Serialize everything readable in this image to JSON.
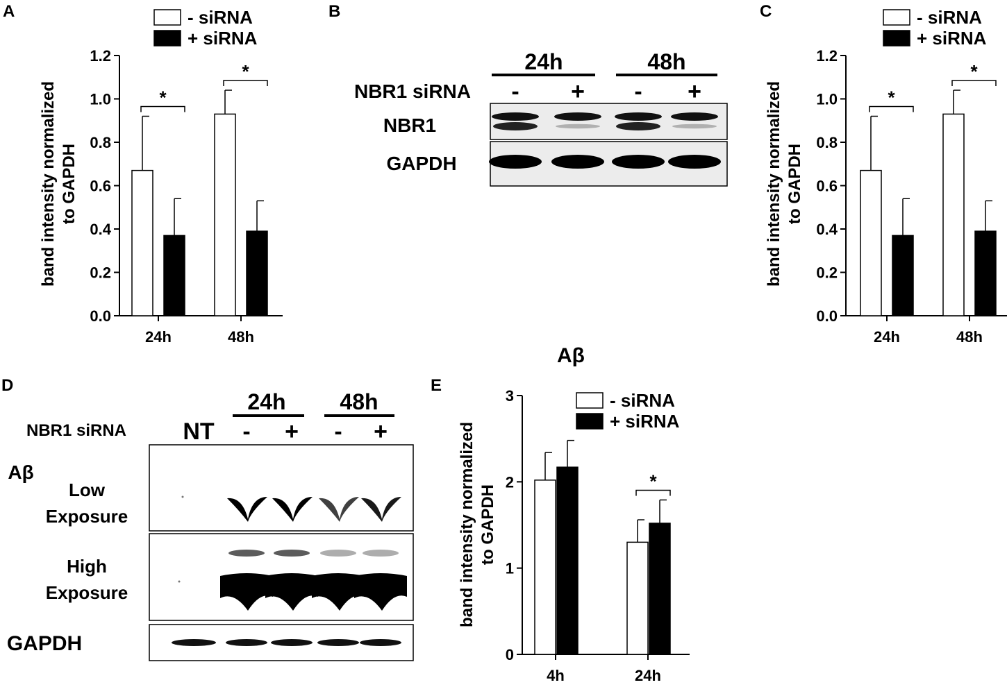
{
  "panels": {
    "A": {
      "letter": "A"
    },
    "B": {
      "letter": "B"
    },
    "C": {
      "letter": "C"
    },
    "D": {
      "letter": "D"
    },
    "E": {
      "letter": "E"
    }
  },
  "chart_data": [
    {
      "panel": "A",
      "type": "bar",
      "title": "",
      "ylabel": "band intensity normalized to GAPDH",
      "ylabel_lines": [
        "band intensity normalized",
        "to GAPDH"
      ],
      "xlabel": "",
      "categories": [
        "24h",
        "48h"
      ],
      "series": [
        {
          "name": "- siRNA",
          "values": [
            0.67,
            0.93
          ],
          "errors": [
            0.25,
            0.11
          ],
          "fill": "#ffffff"
        },
        {
          "name": "+ siRNA",
          "values": [
            0.37,
            0.39
          ],
          "errors": [
            0.17,
            0.14
          ],
          "fill": "#000000"
        }
      ],
      "ylim": [
        0,
        1.2
      ],
      "yticks": [
        "0.0",
        "0.2",
        "0.4",
        "0.6",
        "0.8",
        "1.0",
        "1.2"
      ],
      "significance": [
        "*",
        "*"
      ],
      "legend_position": "top"
    },
    {
      "panel": "C",
      "type": "bar",
      "title": "",
      "ylabel": "band intensity normalized to GAPDH",
      "ylabel_lines": [
        "band intensity normalized",
        "to GAPDH"
      ],
      "xlabel": "",
      "categories": [
        "24h",
        "48h"
      ],
      "series": [
        {
          "name": "- siRNA",
          "values": [
            0.67,
            0.93
          ],
          "errors": [
            0.25,
            0.11
          ],
          "fill": "#ffffff"
        },
        {
          "name": "+ siRNA",
          "values": [
            0.37,
            0.39
          ],
          "errors": [
            0.17,
            0.14
          ],
          "fill": "#000000"
        }
      ],
      "ylim": [
        0,
        1.2
      ],
      "yticks": [
        "0.0",
        "0.2",
        "0.4",
        "0.6",
        "0.8",
        "1.0",
        "1.2"
      ],
      "significance": [
        "*",
        "*"
      ],
      "legend_position": "top"
    },
    {
      "panel": "E",
      "type": "bar",
      "title": "Aβ",
      "ylabel": "band intensity normalized to GAPDH",
      "ylabel_lines": [
        "band intensity normalized",
        "to GAPDH"
      ],
      "xlabel": "",
      "categories": [
        "4h",
        "24h"
      ],
      "series": [
        {
          "name": "- siRNA",
          "values": [
            2.02,
            1.3
          ],
          "errors": [
            0.32,
            0.26
          ],
          "fill": "#ffffff"
        },
        {
          "name": "+ siRNA",
          "values": [
            2.17,
            1.52
          ],
          "errors": [
            0.31,
            0.27
          ],
          "fill": "#000000"
        }
      ],
      "ylim": [
        0,
        3
      ],
      "yticks": [
        "0",
        "1",
        "2",
        "3"
      ],
      "significance": [
        "",
        "*"
      ],
      "legend_position": "top-right"
    }
  ],
  "blots": {
    "B": {
      "timepoints": [
        "24h",
        "48h"
      ],
      "treatment_label": "NBR1 siRNA",
      "lane_signs": [
        "-",
        "+",
        "-",
        "+"
      ],
      "rows": [
        "NBR1",
        "GAPDH"
      ],
      "nbr1_intensity": [
        1,
        0.45,
        1,
        0.45
      ]
    },
    "D": {
      "timepoints": [
        "24h",
        "48h"
      ],
      "treatment_label": "NBR1 siRNA",
      "nt_label": "NT",
      "lane_signs": [
        "-",
        "+",
        "-",
        "+"
      ],
      "target_label": "Aβ",
      "low_label_lines": [
        "Low",
        "Exposure"
      ],
      "high_label_lines": [
        "High",
        "Exposure"
      ],
      "gapdh_label": "GAPDH"
    }
  }
}
